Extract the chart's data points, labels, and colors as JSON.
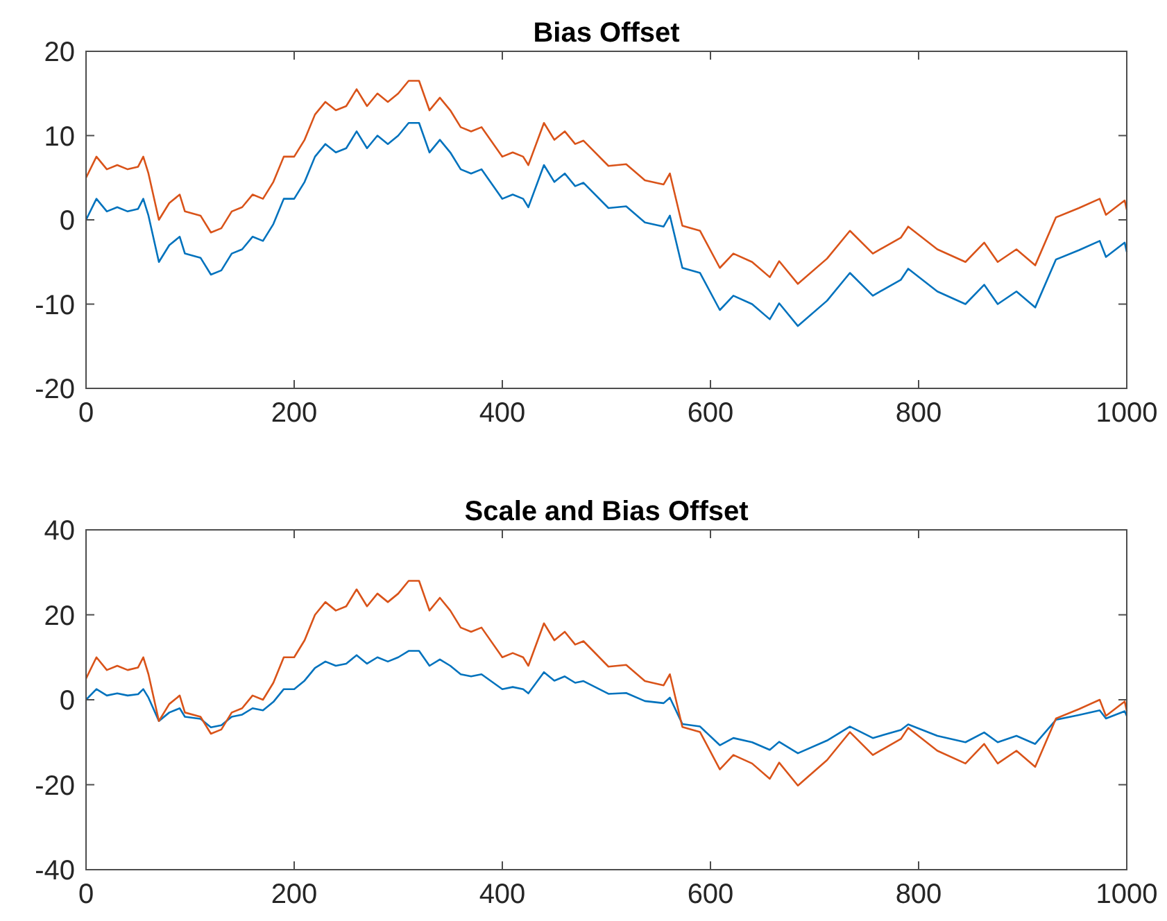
{
  "chart_data": [
    {
      "type": "line",
      "title": "Bias Offset",
      "x": [
        0,
        10,
        20,
        30,
        40,
        50,
        55,
        60,
        70,
        80,
        90,
        95,
        110,
        120,
        130,
        140,
        150,
        160,
        170,
        180,
        190,
        200,
        210,
        220,
        230,
        240,
        250,
        260,
        270,
        280,
        290,
        300,
        310,
        320,
        330,
        340,
        350,
        360,
        370,
        380,
        400,
        410,
        420,
        425,
        440,
        450,
        460,
        470,
        478,
        502,
        519,
        537,
        555,
        561,
        573,
        590,
        609,
        622,
        640,
        657,
        666,
        684,
        712,
        734,
        756,
        783,
        790,
        818,
        845,
        863,
        876,
        894,
        912,
        932,
        954,
        974,
        980,
        998,
        1000
      ],
      "series": [
        {
          "color": "#0072bd",
          "values": [
            0,
            2.5,
            1,
            1.5,
            1,
            1.3,
            2.5,
            0.5,
            -5,
            -3,
            -2,
            -4,
            -4.5,
            -6.5,
            -6,
            -4,
            -3.5,
            -2,
            -2.5,
            -0.5,
            2.5,
            2.5,
            4.5,
            7.5,
            9,
            8,
            8.5,
            10.5,
            8.5,
            10,
            9,
            10,
            11.5,
            11.5,
            8,
            9.5,
            8,
            6,
            5.5,
            6,
            2.5,
            3,
            2.5,
            1.5,
            6.5,
            4.5,
            5.5,
            4,
            4.4,
            1.4,
            1.6,
            -0.3,
            -0.8,
            0.5,
            -5.7,
            -6.3,
            -10.7,
            -9,
            -10,
            -11.8,
            -9.9,
            -12.6,
            -9.6,
            -6.3,
            -9,
            -7.1,
            -5.8,
            -8.5,
            -10,
            -7.7,
            -10,
            -8.5,
            -10.4,
            -4.7,
            -3.6,
            -2.5,
            -4.4,
            -2.7,
            -3.8
          ]
        },
        {
          "color": "#d95319",
          "values": [
            5,
            7.5,
            6,
            6.5,
            6,
            6.3,
            7.5,
            5.5,
            0,
            2,
            3,
            1,
            0.5,
            -1.5,
            -1,
            1,
            1.5,
            3,
            2.5,
            4.5,
            7.5,
            7.5,
            9.5,
            12.5,
            14,
            13,
            13.5,
            15.5,
            13.5,
            15,
            14,
            15,
            16.5,
            16.5,
            13,
            14.5,
            13,
            11,
            10.5,
            11,
            7.5,
            8,
            7.5,
            6.5,
            11.5,
            9.5,
            10.5,
            9,
            9.4,
            6.4,
            6.6,
            4.7,
            4.2,
            5.5,
            -0.7,
            -1.3,
            -5.7,
            -4,
            -5,
            -6.8,
            -4.9,
            -7.6,
            -4.6,
            -1.3,
            -4,
            -2.1,
            -0.8,
            -3.5,
            -5,
            -2.7,
            -5,
            -3.5,
            -5.4,
            0.3,
            1.4,
            2.5,
            0.6,
            2.3,
            1.2
          ]
        }
      ],
      "xlim": [
        0,
        1000
      ],
      "xticks": [
        0,
        200,
        400,
        600,
        800,
        1000
      ],
      "ylim": [
        -20,
        20
      ],
      "yticks": [
        -20,
        -10,
        0,
        10,
        20
      ]
    },
    {
      "type": "line",
      "title": "Scale and Bias Offset",
      "x": [
        0,
        10,
        20,
        30,
        40,
        50,
        55,
        60,
        70,
        80,
        90,
        95,
        110,
        120,
        130,
        140,
        150,
        160,
        170,
        180,
        190,
        200,
        210,
        220,
        230,
        240,
        250,
        260,
        270,
        280,
        290,
        300,
        310,
        320,
        330,
        340,
        350,
        360,
        370,
        380,
        400,
        410,
        420,
        425,
        440,
        450,
        460,
        470,
        478,
        502,
        519,
        537,
        555,
        561,
        573,
        590,
        609,
        622,
        640,
        657,
        666,
        684,
        712,
        734,
        756,
        783,
        790,
        818,
        845,
        863,
        876,
        894,
        912,
        932,
        954,
        974,
        980,
        998,
        1000
      ],
      "series": [
        {
          "color": "#0072bd",
          "values": [
            0,
            2.5,
            1,
            1.5,
            1,
            1.3,
            2.5,
            0.5,
            -5,
            -3,
            -2,
            -4,
            -4.5,
            -6.5,
            -6,
            -4,
            -3.5,
            -2,
            -2.5,
            -0.5,
            2.5,
            2.5,
            4.5,
            7.5,
            9,
            8,
            8.5,
            10.5,
            8.5,
            10,
            9,
            10,
            11.5,
            11.5,
            8,
            9.5,
            8,
            6,
            5.5,
            6,
            2.5,
            3,
            2.5,
            1.5,
            6.5,
            4.5,
            5.5,
            4,
            4.4,
            1.4,
            1.6,
            -0.3,
            -0.8,
            0.5,
            -5.7,
            -6.3,
            -10.7,
            -9,
            -10,
            -11.8,
            -9.9,
            -12.6,
            -9.6,
            -6.3,
            -9,
            -7.1,
            -5.8,
            -8.5,
            -10,
            -7.7,
            -10,
            -8.5,
            -10.4,
            -4.7,
            -3.6,
            -2.5,
            -4.4,
            -2.7,
            -3.8
          ]
        },
        {
          "color": "#d95319",
          "values": [
            5,
            10,
            7,
            8,
            7,
            7.6,
            10,
            6,
            -5,
            -1,
            1,
            -3,
            -4,
            -8,
            -7,
            -3,
            -2,
            1,
            0,
            4,
            10,
            10,
            14,
            20,
            23,
            21,
            22,
            26,
            22,
            25,
            23,
            25,
            28,
            28,
            21,
            24,
            21,
            17,
            16,
            17,
            10,
            11,
            10,
            8,
            18,
            14,
            16,
            13,
            13.8,
            7.8,
            8.2,
            4.4,
            3.4,
            6,
            -6.4,
            -7.6,
            -16.4,
            -13,
            -15,
            -18.6,
            -14.8,
            -20.2,
            -14.2,
            -7.6,
            -13,
            -9.2,
            -6.6,
            -12,
            -15,
            -10.4,
            -15,
            -12,
            -15.8,
            -4.4,
            -2.2,
            0,
            -3.8,
            -0.4,
            -2.6
          ]
        }
      ],
      "xlim": [
        0,
        1000
      ],
      "xticks": [
        0,
        200,
        400,
        600,
        800,
        1000
      ],
      "ylim": [
        -40,
        40
      ],
      "yticks": [
        -40,
        -20,
        0,
        20,
        40
      ]
    }
  ]
}
